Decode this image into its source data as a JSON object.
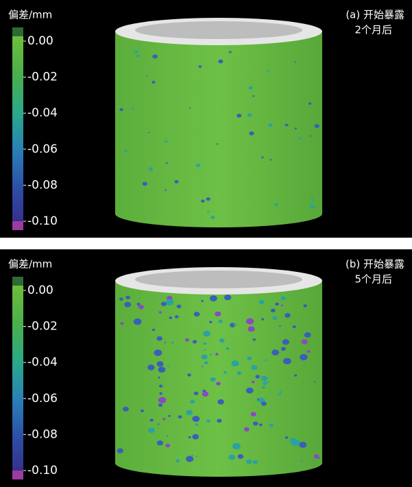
{
  "panels": [
    {
      "unit_label": "偏差/mm",
      "colorbar_ticks": [
        "0.00",
        "-0.02",
        "-0.04",
        "-0.06",
        "-0.08",
        "-0.10"
      ],
      "caption": {
        "line1": "(a) 开始暴露",
        "line2": "2个月后"
      }
    },
    {
      "unit_label": "偏差/mm",
      "colorbar_ticks": [
        "0.00",
        "-0.02",
        "-0.04",
        "-0.06",
        "-0.08",
        "-0.10"
      ],
      "caption": {
        "line1": "(b) 开始暴露",
        "line2": "5个月后"
      }
    }
  ]
}
